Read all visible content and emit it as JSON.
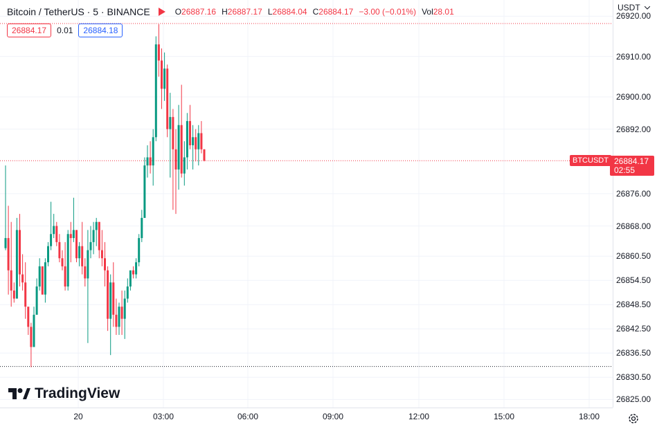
{
  "header": {
    "symbol": "Bitcoin / TetherUS · 5 · BINANCE",
    "o_label": "O",
    "o_value": "26887.16",
    "h_label": "H",
    "h_value": "26887.17",
    "l_label": "L",
    "l_value": "26884.04",
    "c_label": "C",
    "c_value": "26884.17",
    "change": "−3.00 (−0.01%)",
    "vol_label": "Vol",
    "vol_value": "28.01"
  },
  "trade": {
    "sell": "26884.17",
    "spread": "0.01",
    "buy": "26884.18"
  },
  "price_axis": {
    "currency": "USDT",
    "ticks": [
      "26920.00",
      "26910.00",
      "26900.00",
      "26892.00",
      "26876.00",
      "26868.00",
      "26860.50",
      "26854.50",
      "26848.50",
      "26842.50",
      "26836.50",
      "26830.50",
      "26825.00"
    ],
    "last_price": "26884.17",
    "countdown": "02:55",
    "symbol_tag": "BTCUSDT"
  },
  "time_axis": {
    "ticks": [
      "20",
      "03:00",
      "06:00",
      "09:00",
      "12:00",
      "15:00",
      "18:00"
    ]
  },
  "brand": {
    "name": "TradingView"
  },
  "colors": {
    "up": "#089981",
    "down": "#F23645",
    "grid": "#f0f3fa"
  },
  "chart_data": {
    "type": "candlestick",
    "title": "Bitcoin / TetherUS · 5 · BINANCE",
    "ylim": [
      26823,
      26924
    ],
    "last_price": 26884.17,
    "candles": [
      [
        26862.5,
        26883,
        26862,
        26865
      ],
      [
        26865,
        26873,
        26851,
        26857
      ],
      [
        26857,
        26869,
        26848,
        26852
      ],
      [
        26852,
        26854,
        26849,
        26850
      ],
      [
        26850,
        26870,
        26850,
        26867
      ],
      [
        26867,
        26871,
        26853,
        26856
      ],
      [
        26856,
        26861,
        26852,
        26854
      ],
      [
        26854,
        26859,
        26845,
        26848
      ],
      [
        26848,
        26847,
        26841,
        26843
      ],
      [
        26843,
        26844,
        26833,
        26838
      ],
      [
        26838,
        26848,
        26838,
        26846
      ],
      [
        26846,
        26855,
        26846,
        26853
      ],
      [
        26853,
        26860,
        26852,
        26858
      ],
      [
        26858,
        26858,
        26851,
        26851
      ],
      [
        26851,
        26860,
        26849,
        26859
      ],
      [
        26859,
        26864,
        26858,
        26863
      ],
      [
        26863,
        26874,
        26862,
        26866
      ],
      [
        26866,
        26871,
        26865,
        26868
      ],
      [
        26868,
        26869,
        26863,
        26864
      ],
      [
        26864,
        26866,
        26859,
        26860
      ],
      [
        26860,
        26862,
        26857,
        26858
      ],
      [
        26858,
        26864,
        26852,
        26853
      ],
      [
        26853,
        26867,
        26852,
        26866
      ],
      [
        26866,
        26869,
        26859,
        26865
      ],
      [
        26865,
        26875,
        26864,
        26867
      ],
      [
        26867,
        26867,
        26859,
        26860
      ],
      [
        26860,
        26864,
        26858,
        26863
      ],
      [
        26863,
        26869,
        26856,
        26858
      ],
      [
        26858,
        26860,
        26853,
        26855
      ],
      [
        26855,
        26867,
        26839,
        26862
      ],
      [
        26862,
        26868,
        26860,
        26864
      ],
      [
        26864,
        26869,
        26861,
        26867
      ],
      [
        26867,
        26870,
        26863,
        26869
      ],
      [
        26869,
        26869,
        26860,
        26862
      ],
      [
        26862,
        26867,
        26858,
        26860
      ],
      [
        26860,
        26864,
        26853,
        26857
      ],
      [
        26857,
        26858,
        26842,
        26845
      ],
      [
        26845,
        26856,
        26836,
        26854
      ],
      [
        26854,
        26859,
        26843,
        26846
      ],
      [
        26846,
        26850,
        26841,
        26843
      ],
      [
        26843,
        26849,
        26841,
        26848
      ],
      [
        26848,
        26852,
        26841,
        26845
      ],
      [
        26845,
        26852,
        26840,
        26850
      ],
      [
        26850,
        26855,
        26849,
        26853
      ],
      [
        26853,
        26856,
        26852,
        26857
      ],
      [
        26857,
        26858,
        26855,
        26856
      ],
      [
        26856,
        26860,
        26855,
        26859
      ],
      [
        26859,
        26866,
        26858,
        26865
      ],
      [
        26865,
        26872,
        26864,
        26870
      ],
      [
        26870,
        26885,
        26870,
        26883
      ],
      [
        26883,
        26888,
        26880,
        26885
      ],
      [
        26885,
        26889,
        26881,
        26883
      ],
      [
        26883,
        26892,
        26878,
        26890
      ],
      [
        26890,
        26915,
        26889,
        26913
      ],
      [
        26913,
        26918,
        26905,
        26909
      ],
      [
        26909,
        26912,
        26897,
        26902
      ],
      [
        26902,
        26911,
        26899,
        26907
      ],
      [
        26907,
        26908,
        26890,
        26892
      ],
      [
        26892,
        26901,
        26880,
        26895
      ],
      [
        26895,
        26897,
        26872,
        26887
      ],
      [
        26887,
        26892,
        26871,
        26882
      ],
      [
        26882,
        26898,
        26877,
        26893
      ],
      [
        26893,
        26903,
        26880,
        26881
      ],
      [
        26881,
        26889,
        26878,
        26885
      ],
      [
        26885,
        26896,
        26882,
        26894
      ],
      [
        26894,
        26898,
        26887,
        26888
      ],
      [
        26888,
        26893,
        26882,
        26890
      ],
      [
        26890,
        26892,
        26884,
        26887
      ],
      [
        26887,
        26893,
        26883,
        26891
      ],
      [
        26891,
        26894,
        26886,
        26887
      ],
      [
        26887,
        26887,
        26884,
        26884.17
      ]
    ]
  }
}
